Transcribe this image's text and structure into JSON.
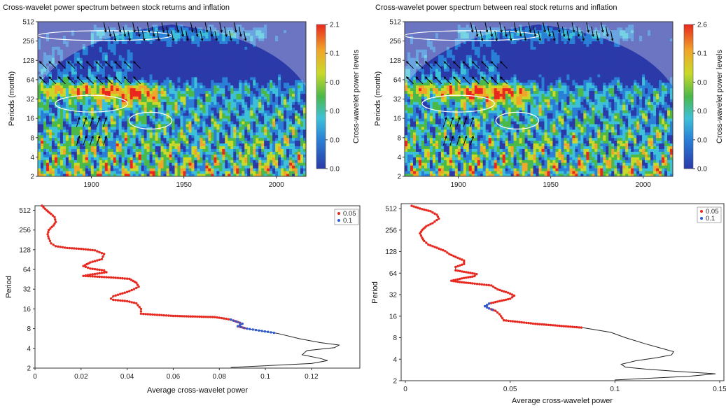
{
  "chart_data": [
    {
      "type": "heatmap",
      "title": "Cross-wavelet power spectrum between stock returns and inflation",
      "xlabel": "",
      "ylabel": "Periods (month)",
      "x_ticks": [
        "1900",
        "1950",
        "2000"
      ],
      "y_ticks": [
        "512",
        "256",
        "128",
        "64",
        "32",
        "16",
        "8",
        "4",
        "2"
      ],
      "colorbar_label": "Cross-wavelet power levels",
      "colorbar_ticks": [
        "2.1",
        "0.1",
        "0.0",
        "0.0",
        "0.0",
        "0.0"
      ],
      "xlim": [
        1871,
        2016
      ],
      "ylim": [
        2,
        512
      ],
      "y_scale": "log2",
      "colors": [
        "#2b3aa8",
        "#2a7fd6",
        "#3dc1d8",
        "#4bb84a",
        "#c9d92a",
        "#f0a62a",
        "#e8281e"
      ]
    },
    {
      "type": "heatmap",
      "title": "Cross-wavelet power spectrum between real stock returns and inflation",
      "xlabel": "",
      "ylabel": "Periods (month)",
      "x_ticks": [
        "1900",
        "1950",
        "2000"
      ],
      "y_ticks": [
        "512",
        "256",
        "128",
        "64",
        "32",
        "16",
        "8",
        "4",
        "2"
      ],
      "colorbar_label": "Cross-wavelet power levels",
      "colorbar_ticks": [
        "2.6",
        "0.1",
        "0.0",
        "0.0",
        "0.0",
        "0.0"
      ],
      "xlim": [
        1871,
        2016
      ],
      "ylim": [
        2,
        512
      ],
      "y_scale": "log2",
      "colors": [
        "#2b3aa8",
        "#2a7fd6",
        "#3dc1d8",
        "#4bb84a",
        "#c9d92a",
        "#f0a62a",
        "#e8281e"
      ]
    },
    {
      "type": "line",
      "title": "",
      "xlabel": "Average cross-wavelet power",
      "ylabel": "Period",
      "x_ticks": [
        "0",
        "0.02",
        "0.04",
        "0.06",
        "0.08",
        "0.1",
        "0.12"
      ],
      "y_ticks": [
        "512",
        "256",
        "128",
        "64",
        "32",
        "16",
        "8",
        "4",
        "2"
      ],
      "xlim": [
        0,
        0.141
      ],
      "ylim": [
        2,
        600
      ],
      "y_scale": "log2",
      "legend": [
        "0.05",
        "0.1"
      ],
      "legend_colors": [
        "#e8281e",
        "#2a5bd6"
      ],
      "legend_position": "top-right",
      "series": [
        {
          "points": [
            [
              0.003,
              600
            ],
            [
              0.005,
              512
            ],
            [
              0.007,
              450
            ],
            [
              0.0085,
              400
            ],
            [
              0.009,
              340
            ],
            [
              0.008,
              300
            ],
            [
              0.006,
              256
            ],
            [
              0.0055,
              220
            ],
            [
              0.006,
              190
            ],
            [
              0.007,
              160
            ],
            [
              0.009,
              145
            ],
            [
              0.014,
              136
            ],
            [
              0.02,
              132
            ],
            [
              0.026,
              125
            ],
            [
              0.03,
              110
            ],
            [
              0.029,
              92
            ],
            [
              0.024,
              82
            ],
            [
              0.021,
              72
            ],
            [
              0.024,
              66
            ],
            [
              0.03,
              62
            ],
            [
              0.031,
              58
            ],
            [
              0.025,
              54
            ],
            [
              0.021,
              51
            ],
            [
              0.026,
              50
            ],
            [
              0.034,
              48
            ],
            [
              0.041,
              46
            ],
            [
              0.044,
              40
            ],
            [
              0.045,
              35
            ],
            [
              0.043,
              32
            ],
            [
              0.04,
              29
            ],
            [
              0.037,
              27
            ],
            [
              0.034,
              25
            ],
            [
              0.033,
              23
            ],
            [
              0.034,
              22
            ],
            [
              0.04,
              21
            ],
            [
              0.044,
              19.5
            ],
            [
              0.046,
              16
            ],
            [
              0.046,
              13.5
            ],
            [
              0.06,
              12.5
            ],
            [
              0.078,
              12
            ],
            [
              0.085,
              11
            ],
            [
              0.09,
              9.5
            ],
            [
              0.088,
              8.7
            ],
            [
              0.092,
              8
            ],
            [
              0.105,
              6.8
            ],
            [
              0.115,
              5.6
            ],
            [
              0.124,
              4.9
            ],
            [
              0.132,
              4.5
            ],
            [
              0.13,
              4.1
            ],
            [
              0.118,
              3.7
            ],
            [
              0.116,
              3.2
            ],
            [
              0.124,
              2.8
            ],
            [
              0.127,
              2.6
            ],
            [
              0.12,
              2.35
            ],
            [
              0.085,
              2.05
            ]
          ],
          "sig_005_range": [
            0,
            43
          ],
          "sig_01_range": [
            40,
            44
          ]
        }
      ]
    },
    {
      "type": "line",
      "title": "",
      "xlabel": "Average cross-wavelet power",
      "ylabel": "Period",
      "x_ticks": [
        "0",
        "0.05",
        "0.1",
        "0.15"
      ],
      "y_ticks": [
        "512",
        "256",
        "128",
        "64",
        "32",
        "16",
        "8",
        "4",
        "2"
      ],
      "xlim": [
        -0.002,
        0.152
      ],
      "ylim": [
        2,
        600
      ],
      "y_scale": "log2",
      "legend": [
        "0.05",
        "0.1"
      ],
      "legend_colors": [
        "#e8281e",
        "#2a5bd6"
      ],
      "legend_position": "top-right",
      "series": [
        {
          "points": [
            [
              0.003,
              560
            ],
            [
              0.007,
              512
            ],
            [
              0.012,
              470
            ],
            [
              0.015,
              420
            ],
            [
              0.016,
              370
            ],
            [
              0.013,
              320
            ],
            [
              0.01,
              290
            ],
            [
              0.008,
              256
            ],
            [
              0.007,
              230
            ],
            [
              0.008,
              200
            ],
            [
              0.009,
              180
            ],
            [
              0.011,
              160
            ],
            [
              0.015,
              145
            ],
            [
              0.019,
              130
            ],
            [
              0.021,
              118
            ],
            [
              0.024,
              108
            ],
            [
              0.028,
              96
            ],
            [
              0.028,
              86
            ],
            [
              0.024,
              78
            ],
            [
              0.024,
              70
            ],
            [
              0.029,
              66
            ],
            [
              0.034,
              62
            ],
            [
              0.033,
              58
            ],
            [
              0.027,
              54
            ],
            [
              0.022,
              50
            ],
            [
              0.026,
              48
            ],
            [
              0.032,
              46
            ],
            [
              0.041,
              43
            ],
            [
              0.044,
              38
            ],
            [
              0.049,
              34
            ],
            [
              0.052,
              31
            ],
            [
              0.05,
              28
            ],
            [
              0.045,
              26
            ],
            [
              0.04,
              24
            ],
            [
              0.038,
              22
            ],
            [
              0.04,
              20.5
            ],
            [
              0.043,
              19
            ],
            [
              0.045,
              17
            ],
            [
              0.047,
              14
            ],
            [
              0.062,
              12.5
            ],
            [
              0.085,
              11
            ],
            [
              0.098,
              9.5
            ],
            [
              0.105,
              8
            ],
            [
              0.115,
              6.5
            ],
            [
              0.122,
              5.7
            ],
            [
              0.128,
              5.1
            ],
            [
              0.127,
              4.6
            ],
            [
              0.12,
              4.2
            ],
            [
              0.11,
              3.8
            ],
            [
              0.103,
              3.4
            ],
            [
              0.105,
              3.1
            ],
            [
              0.115,
              2.9
            ],
            [
              0.13,
              2.7
            ],
            [
              0.148,
              2.5
            ],
            [
              0.135,
              2.3
            ],
            [
              0.1,
              2.05
            ]
          ],
          "sig_005_range": [
            0,
            40
          ],
          "sig_01_range": [
            33,
            36
          ]
        }
      ]
    }
  ]
}
